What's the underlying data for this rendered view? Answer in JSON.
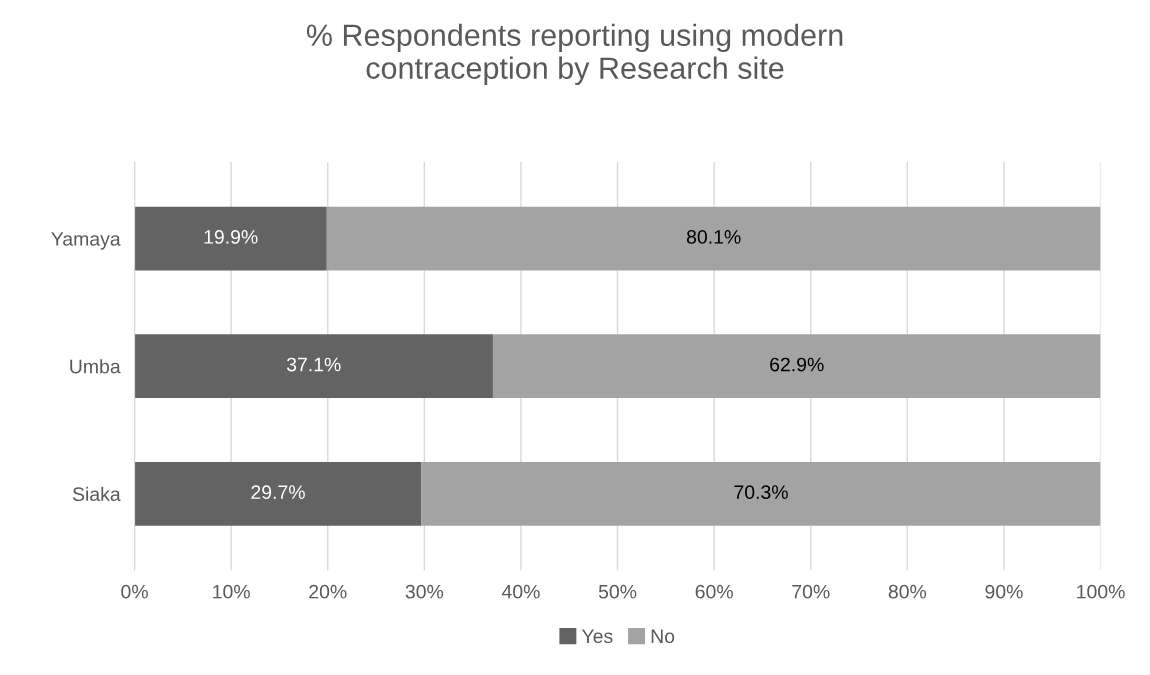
{
  "chart_data": {
    "type": "bar",
    "title": "% Respondents reporting using modern\ncontraception by Research site",
    "orientation": "horizontal",
    "stacked": true,
    "categories": [
      "Yamaya",
      "Umba",
      "Siaka"
    ],
    "series": [
      {
        "name": "Yes",
        "color": "#636363",
        "values": [
          19.9,
          37.1,
          29.7
        ],
        "value_labels": [
          "19.9%",
          "37.1%",
          "29.7%"
        ]
      },
      {
        "name": "No",
        "color": "#a3a3a3",
        "values": [
          80.1,
          62.9,
          70.3
        ],
        "value_labels": [
          "80.1%",
          "62.9%",
          "70.3%"
        ]
      }
    ],
    "xlim": [
      0,
      100
    ],
    "xticks": [
      {
        "value": 0,
        "label": "0%"
      },
      {
        "value": 10,
        "label": "10%"
      },
      {
        "value": 20,
        "label": "20%"
      },
      {
        "value": 30,
        "label": "30%"
      },
      {
        "value": 40,
        "label": "40%"
      },
      {
        "value": 50,
        "label": "50%"
      },
      {
        "value": 60,
        "label": "60%"
      },
      {
        "value": 70,
        "label": "70%"
      },
      {
        "value": 80,
        "label": "80%"
      },
      {
        "value": 90,
        "label": "90%"
      },
      {
        "value": 100,
        "label": "100%"
      }
    ],
    "grid": "x",
    "legend": "bottom"
  }
}
